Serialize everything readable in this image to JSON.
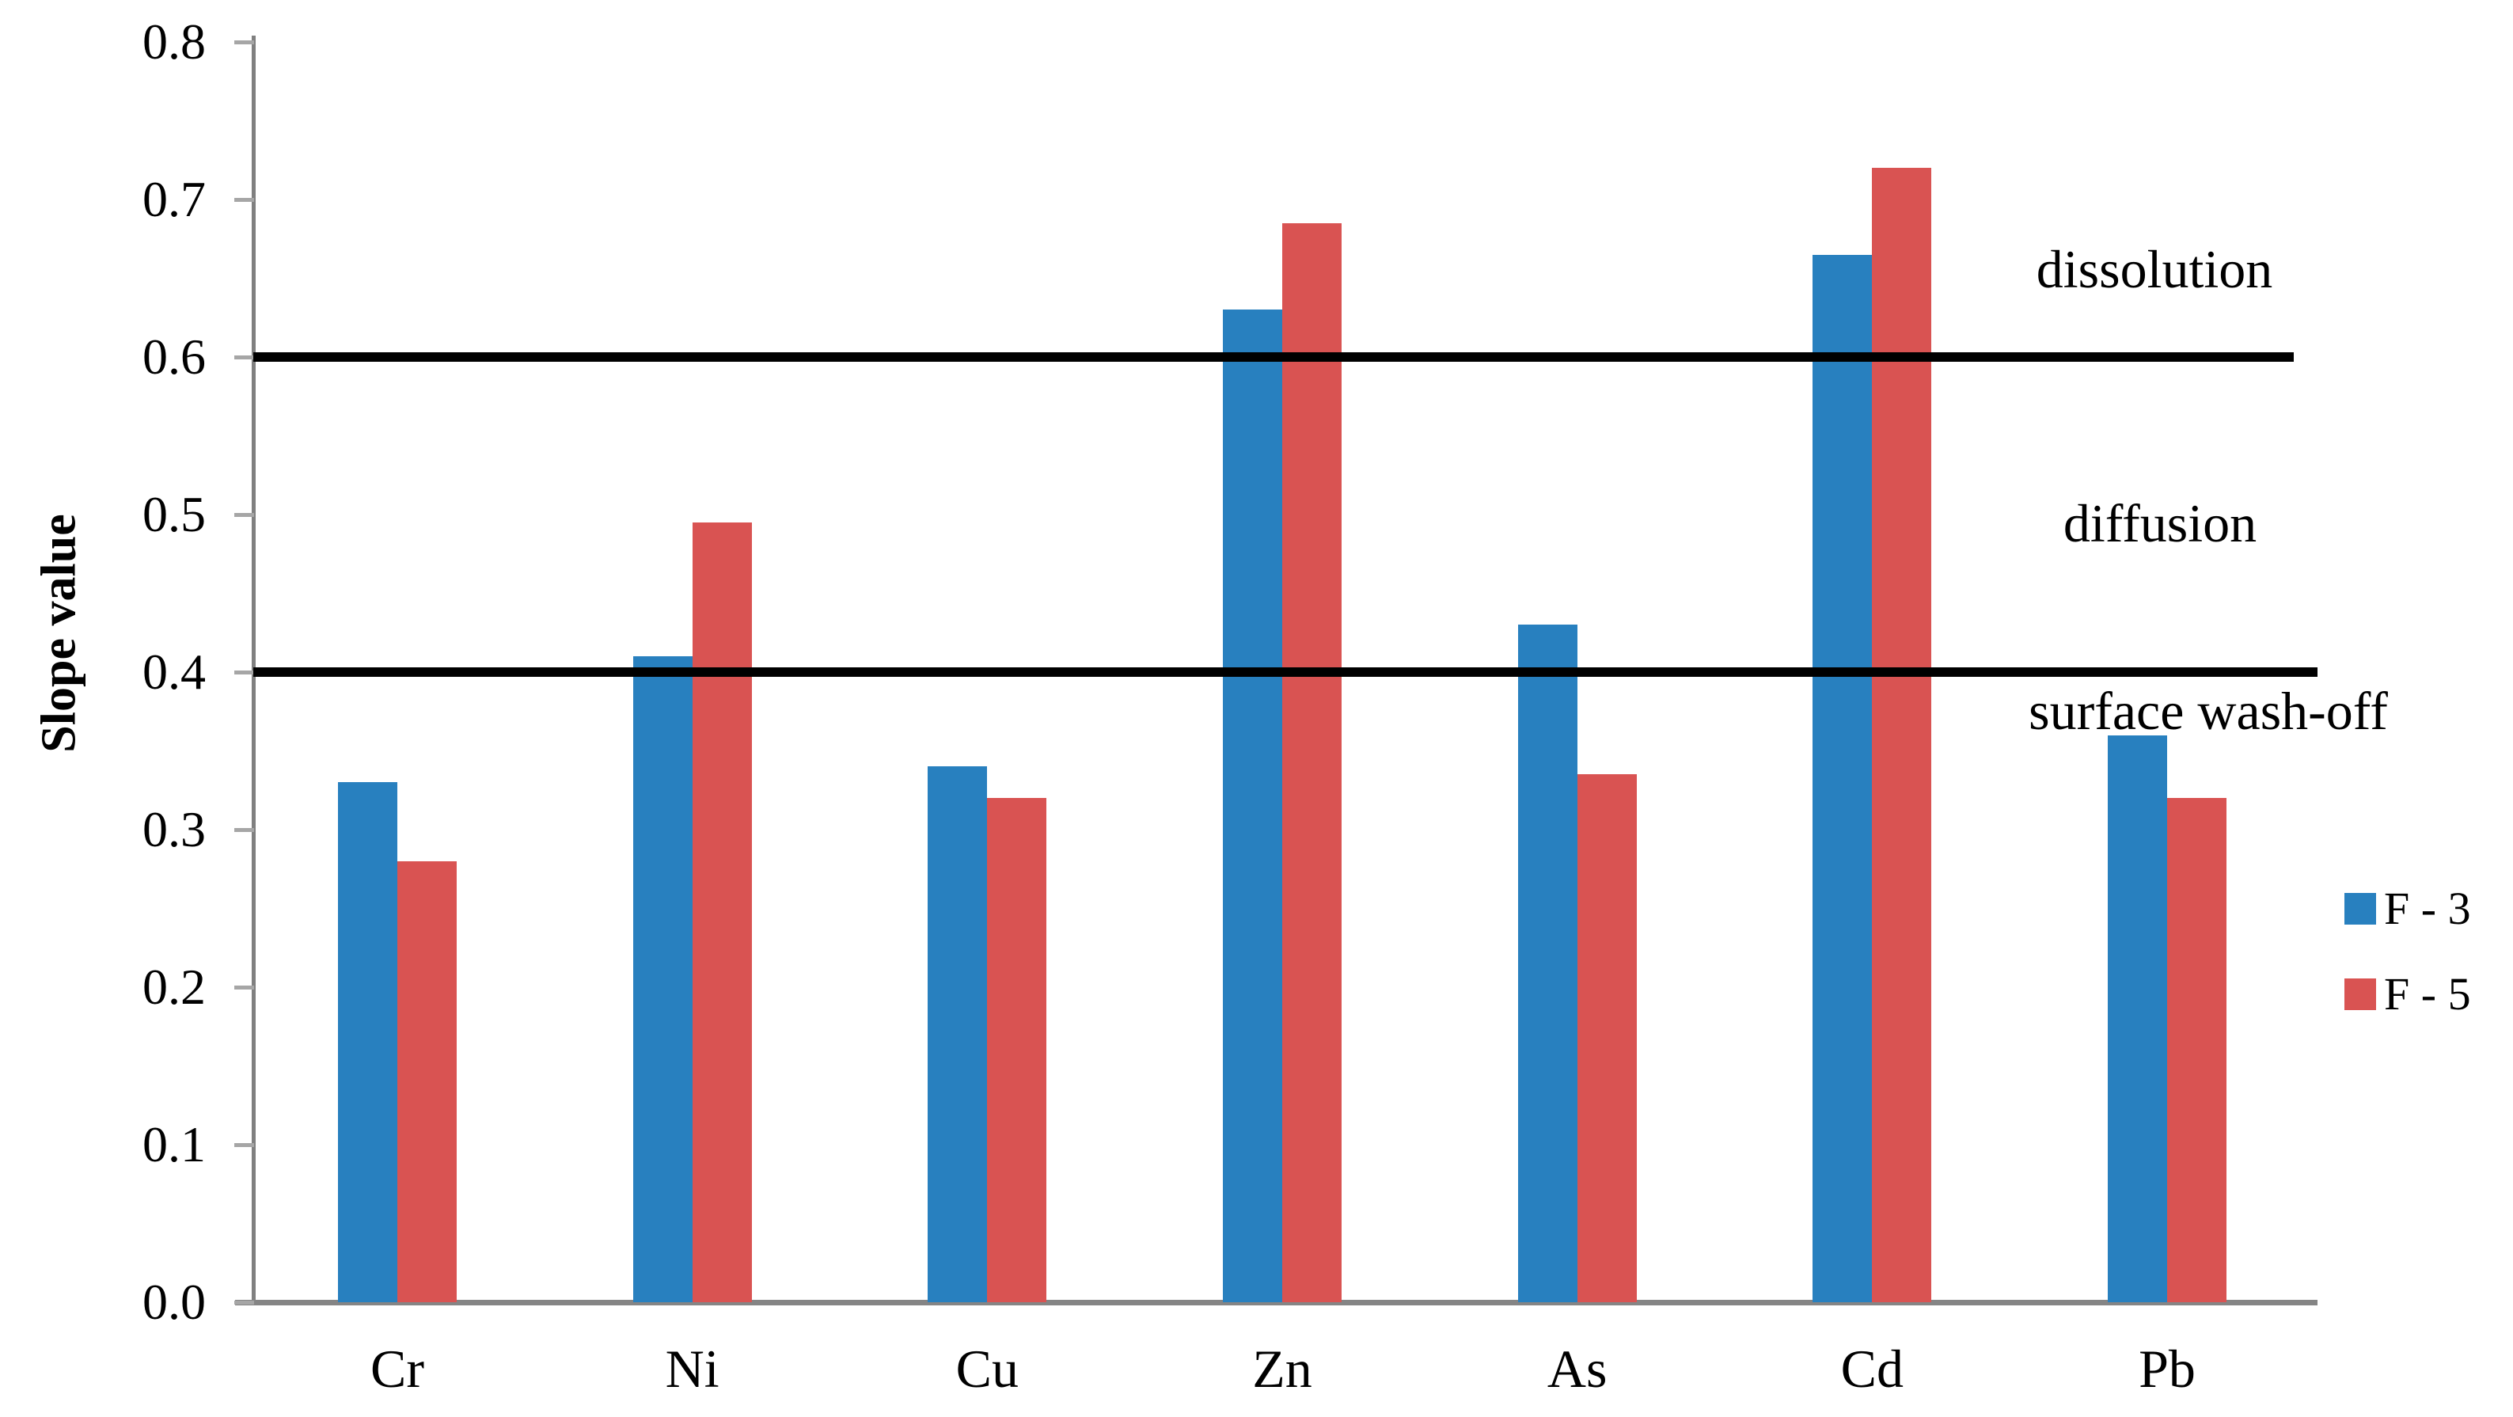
{
  "chart_data": {
    "type": "bar",
    "title": "",
    "xlabel": "",
    "ylabel": "Slope value",
    "categories": [
      "Cr",
      "Ni",
      "Cu",
      "Zn",
      "As",
      "Cd",
      "Pb"
    ],
    "series": [
      {
        "name": "F - 3",
        "color": "#2880BF",
        "values": [
          0.33,
          0.41,
          0.34,
          0.63,
          0.43,
          0.665,
          0.36
        ]
      },
      {
        "name": "F - 5",
        "color": "#D95352",
        "values": [
          0.28,
          0.495,
          0.32,
          0.685,
          0.335,
          0.72,
          0.32
        ]
      }
    ],
    "ylim": [
      0,
      0.8
    ],
    "yticks": [
      0.0,
      0.1,
      0.2,
      0.3,
      0.4,
      0.5,
      0.6,
      0.7,
      0.8
    ],
    "ytick_labels": [
      "0.0",
      "0.1",
      "0.2",
      "0.3",
      "0.4",
      "0.5",
      "0.6",
      "0.7",
      "0.8"
    ],
    "grid": false,
    "reference_lines": [
      {
        "y": 0.4,
        "color": "#000000"
      },
      {
        "y": 0.6,
        "color": "#000000"
      }
    ],
    "annotations": [
      {
        "text": "dissolution",
        "zone": "above 0.6 line"
      },
      {
        "text": "diffusion",
        "zone": "between 0.4 and 0.6 lines"
      },
      {
        "text": "surface wash-off",
        "zone": "below 0.4 line"
      }
    ],
    "legend": {
      "position": "right",
      "entries": [
        "F - 3",
        "F - 5"
      ]
    }
  }
}
